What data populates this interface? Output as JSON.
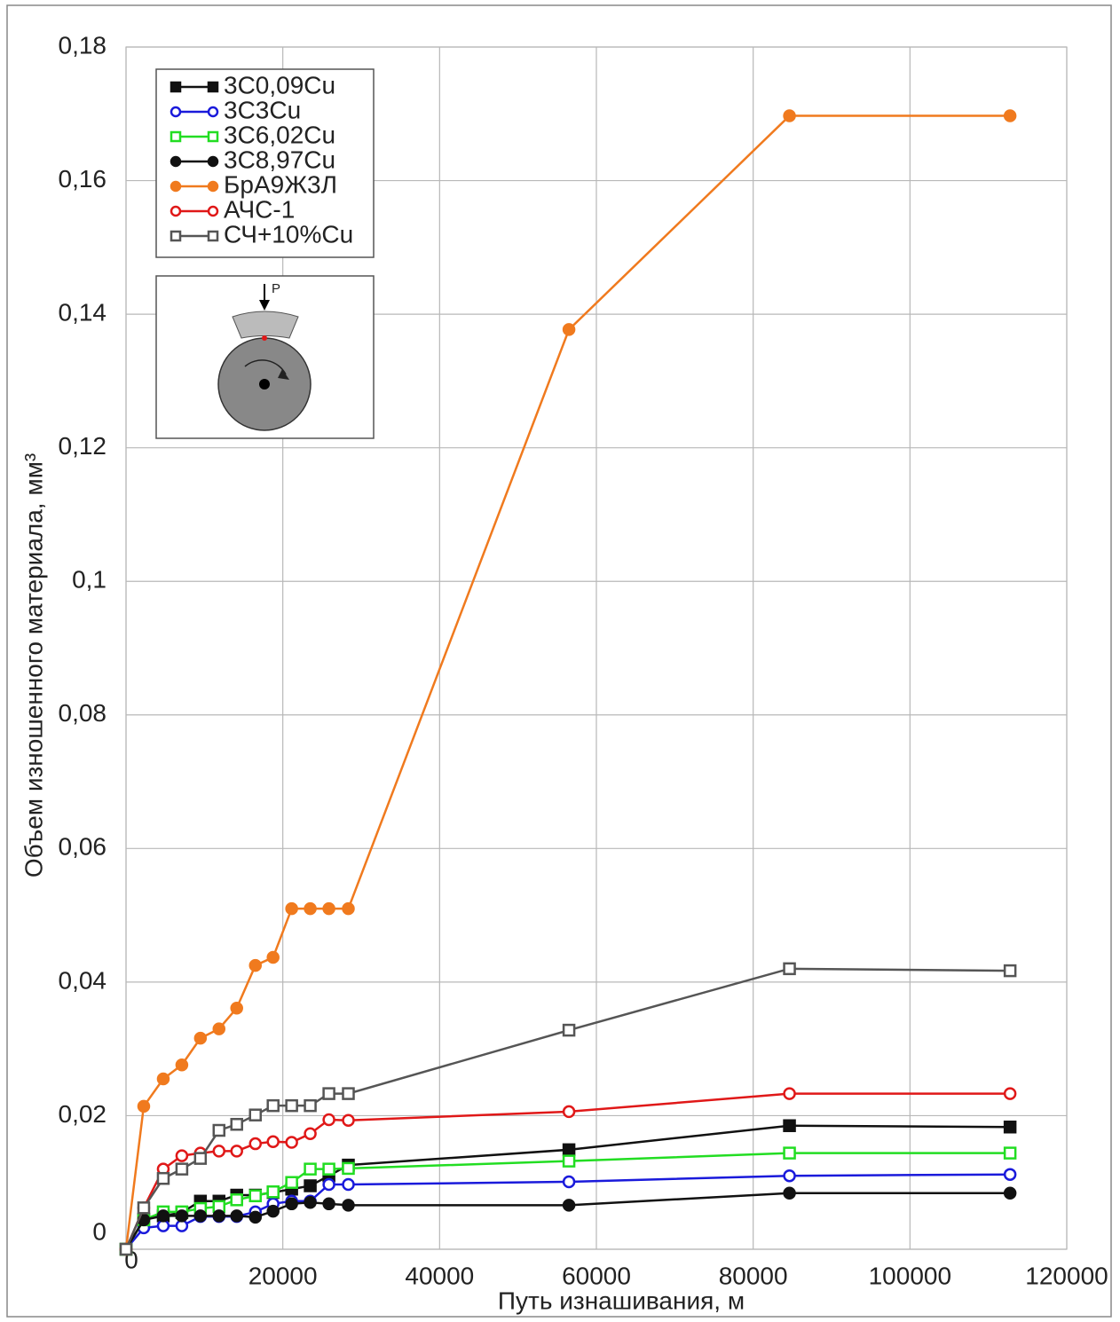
{
  "chart_data": {
    "type": "line",
    "x_label": "Путь изнашивания, м",
    "y_label": "Объем изношенного материала, мм³",
    "x": [
      0,
      2260,
      4750,
      7120,
      9490,
      11860,
      14120,
      16500,
      18760,
      21130,
      23500,
      25880,
      28360,
      56500,
      84630,
      112770
    ],
    "series": [
      {
        "name": "3С0,09Cu",
        "color": "#111111",
        "marker": "square",
        "filled": true,
        "values": [
          0,
          0.0045,
          0.005,
          0.0055,
          0.0072,
          0.0072,
          0.0081,
          0.0081,
          0.0085,
          0.009,
          0.0095,
          0.011,
          0.0126,
          0.0149,
          0.0185,
          0.0183
        ]
      },
      {
        "name": "3С3Cu",
        "color": "#1a1adb",
        "marker": "circle",
        "filled": false,
        "values": [
          0,
          0.0032,
          0.0035,
          0.0035,
          0.0049,
          0.0049,
          0.0049,
          0.0056,
          0.0068,
          0.0072,
          0.0072,
          0.0097,
          0.0097,
          0.0101,
          0.011,
          0.0112
        ]
      },
      {
        "name": "3С6,02Cu",
        "color": "#22dd22",
        "marker": "square",
        "filled": false,
        "values": [
          0,
          0.0044,
          0.0056,
          0.0056,
          0.0061,
          0.0064,
          0.0074,
          0.008,
          0.0086,
          0.01,
          0.012,
          0.012,
          0.0121,
          0.0132,
          0.0144,
          0.0144
        ]
      },
      {
        "name": "3С8,97Cu",
        "color": "#111111",
        "marker": "circle",
        "filled": true,
        "values": [
          0,
          0.0044,
          0.005,
          0.005,
          0.005,
          0.005,
          0.005,
          0.0048,
          0.0057,
          0.0068,
          0.007,
          0.0068,
          0.0066,
          0.0066,
          0.0084,
          0.0084
        ]
      },
      {
        "name": "БрА9Ж3Л",
        "color": "#f07a1e",
        "marker": "circle",
        "filled": true,
        "values": [
          0,
          0.0214,
          0.0255,
          0.0276,
          0.0316,
          0.033,
          0.0361,
          0.0425,
          0.0437,
          0.051,
          0.051,
          0.051,
          0.051,
          0.1377,
          0.1697,
          0.1697
        ]
      },
      {
        "name": "АЧС-1",
        "color": "#e01818",
        "marker": "circle",
        "filled": false,
        "values": [
          0,
          0.0062,
          0.012,
          0.014,
          0.0144,
          0.0147,
          0.0147,
          0.0158,
          0.0161,
          0.016,
          0.0173,
          0.0194,
          0.0193,
          0.0206,
          0.0233,
          0.0233
        ]
      },
      {
        "name": "СЧ+10%Cu",
        "color": "#555555",
        "marker": "square",
        "filled": false,
        "values": [
          0,
          0.0062,
          0.0106,
          0.012,
          0.0136,
          0.0178,
          0.0187,
          0.0201,
          0.0215,
          0.0215,
          0.0215,
          0.0233,
          0.0233,
          0.0328,
          0.042,
          0.0417
        ]
      }
    ],
    "xlim": [
      0,
      120000
    ],
    "xticks": [
      0,
      20000,
      40000,
      60000,
      80000,
      100000,
      120000
    ],
    "ylim": [
      0,
      0.18
    ],
    "yticks": [
      0,
      {
        "value": 0.02,
        "label": "0,02"
      },
      {
        "value": 0.04,
        "label": "0,04"
      },
      {
        "value": 0.06,
        "label": "0,06"
      },
      {
        "value": 0.08,
        "label": "0,08"
      },
      {
        "value": 0.1,
        "label": "0,1"
      },
      {
        "value": 0.12,
        "label": "0,12"
      },
      {
        "value": 0.14,
        "label": "0,14"
      },
      {
        "value": 0.16,
        "label": "0,16"
      },
      {
        "value": 0.18,
        "label": "0,18"
      }
    ],
    "grid": true,
    "legend": "upper left",
    "inset": {
      "label": "P"
    }
  }
}
